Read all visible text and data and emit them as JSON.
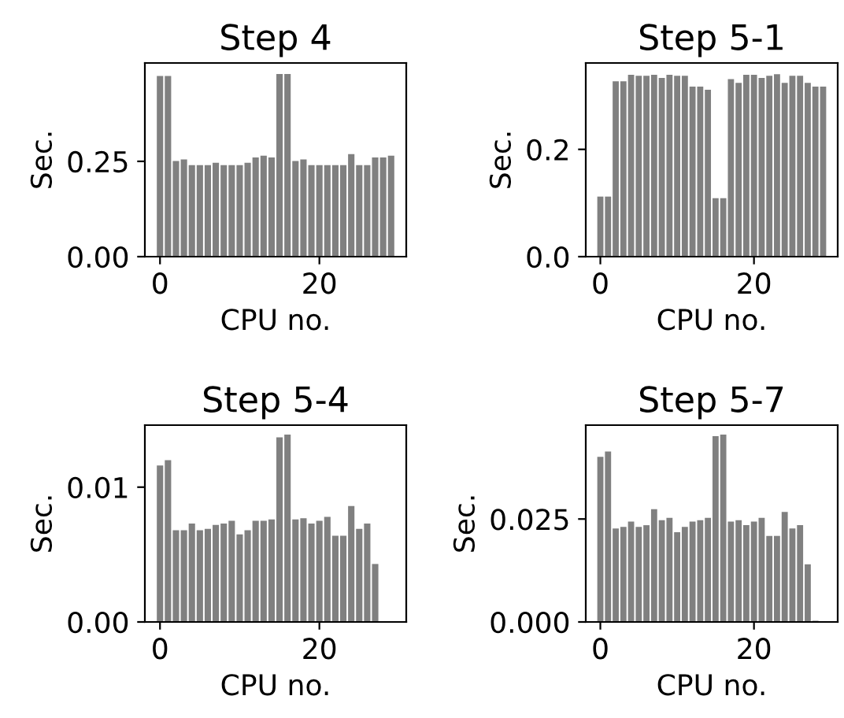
{
  "chart_data": [
    {
      "type": "bar",
      "title": "Step 4",
      "xlabel": "CPU no.",
      "ylabel": "Sec.",
      "x": [
        0,
        1,
        2,
        3,
        4,
        5,
        6,
        7,
        8,
        9,
        10,
        11,
        12,
        13,
        14,
        15,
        16,
        17,
        18,
        19,
        20,
        21,
        22,
        23,
        24,
        25,
        26,
        27,
        28,
        29
      ],
      "values": [
        0.474,
        0.474,
        0.251,
        0.255,
        0.24,
        0.24,
        0.24,
        0.246,
        0.24,
        0.24,
        0.24,
        0.246,
        0.26,
        0.265,
        0.26,
        0.479,
        0.479,
        0.251,
        0.255,
        0.24,
        0.24,
        0.24,
        0.24,
        0.24,
        0.269,
        0.24,
        0.24,
        0.26,
        0.26,
        0.265
      ],
      "color": "#808080",
      "xlim": [
        -1.9,
        30.9
      ],
      "ylim": [
        0,
        0.508
      ],
      "xticks": [
        0,
        20
      ],
      "yticks": [
        {
          "value": 0,
          "label": "0.00"
        },
        {
          "value": 0.25,
          "label": "0.25"
        }
      ],
      "grid": false
    },
    {
      "type": "bar",
      "title": "Step 5-1",
      "xlabel": "CPU no.",
      "ylabel": "Sec.",
      "x": [
        0,
        1,
        2,
        3,
        4,
        5,
        6,
        7,
        8,
        9,
        10,
        11,
        12,
        13,
        14,
        15,
        16,
        17,
        18,
        19,
        20,
        21,
        22,
        23,
        24,
        25,
        26,
        27,
        28,
        29
      ],
      "values": [
        0.112,
        0.112,
        0.327,
        0.327,
        0.339,
        0.337,
        0.337,
        0.339,
        0.333,
        0.339,
        0.337,
        0.337,
        0.317,
        0.317,
        0.311,
        0.109,
        0.109,
        0.331,
        0.324,
        0.339,
        0.339,
        0.333,
        0.337,
        0.34,
        0.324,
        0.337,
        0.337,
        0.324,
        0.317,
        0.317
      ],
      "color": "#808080",
      "xlim": [
        -1.9,
        30.9
      ],
      "ylim": [
        0,
        0.361
      ],
      "xticks": [
        0,
        20
      ],
      "yticks": [
        {
          "value": 0,
          "label": "0.0"
        },
        {
          "value": 0.2,
          "label": "0.2"
        }
      ],
      "grid": false
    },
    {
      "type": "bar",
      "title": "Step 5-4",
      "xlabel": "CPU no.",
      "ylabel": "Sec.",
      "x": [
        0,
        1,
        2,
        3,
        4,
        5,
        6,
        7,
        8,
        9,
        10,
        11,
        12,
        13,
        14,
        15,
        16,
        17,
        18,
        19,
        20,
        21,
        22,
        23,
        24,
        25,
        26,
        27
      ],
      "values": [
        0.0116,
        0.012,
        0.0068,
        0.0068,
        0.0073,
        0.0068,
        0.0069,
        0.0072,
        0.0073,
        0.0075,
        0.0065,
        0.0068,
        0.0075,
        0.0075,
        0.0076,
        0.0137,
        0.0139,
        0.0076,
        0.0077,
        0.0073,
        0.0075,
        0.0078,
        0.0064,
        0.0064,
        0.0086,
        0.0069,
        0.0073,
        0.0043
      ],
      "color": "#808080",
      "xlim": [
        -1.9,
        30.9
      ],
      "ylim": [
        0,
        0.0146
      ],
      "xticks": [
        0,
        20
      ],
      "yticks": [
        {
          "value": 0,
          "label": "0.00"
        },
        {
          "value": 0.01,
          "label": "0.01"
        }
      ],
      "grid": false
    },
    {
      "type": "bar",
      "title": "Step 5-7",
      "xlabel": "CPU no.",
      "ylabel": "Sec.",
      "x": [
        0,
        1,
        2,
        3,
        4,
        5,
        6,
        7,
        8,
        9,
        10,
        11,
        12,
        13,
        14,
        15,
        16,
        17,
        18,
        19,
        20,
        21,
        22,
        23,
        24,
        25,
        26,
        27,
        28
      ],
      "values": [
        0.0401,
        0.0414,
        0.0227,
        0.0231,
        0.0244,
        0.0231,
        0.0235,
        0.0274,
        0.0247,
        0.0253,
        0.0218,
        0.0231,
        0.0244,
        0.0247,
        0.0253,
        0.0451,
        0.0455,
        0.0244,
        0.0247,
        0.0235,
        0.0244,
        0.0253,
        0.0209,
        0.0209,
        0.0267,
        0.0227,
        0.0235,
        0.014,
        0.0003
      ],
      "color": "#808080",
      "xlim": [
        -1.9,
        30.9
      ],
      "ylim": [
        0,
        0.0478
      ],
      "xticks": [
        0,
        20
      ],
      "yticks": [
        {
          "value": 0,
          "label": "0.000"
        },
        {
          "value": 0.025,
          "label": "0.025"
        }
      ],
      "grid": false
    }
  ]
}
